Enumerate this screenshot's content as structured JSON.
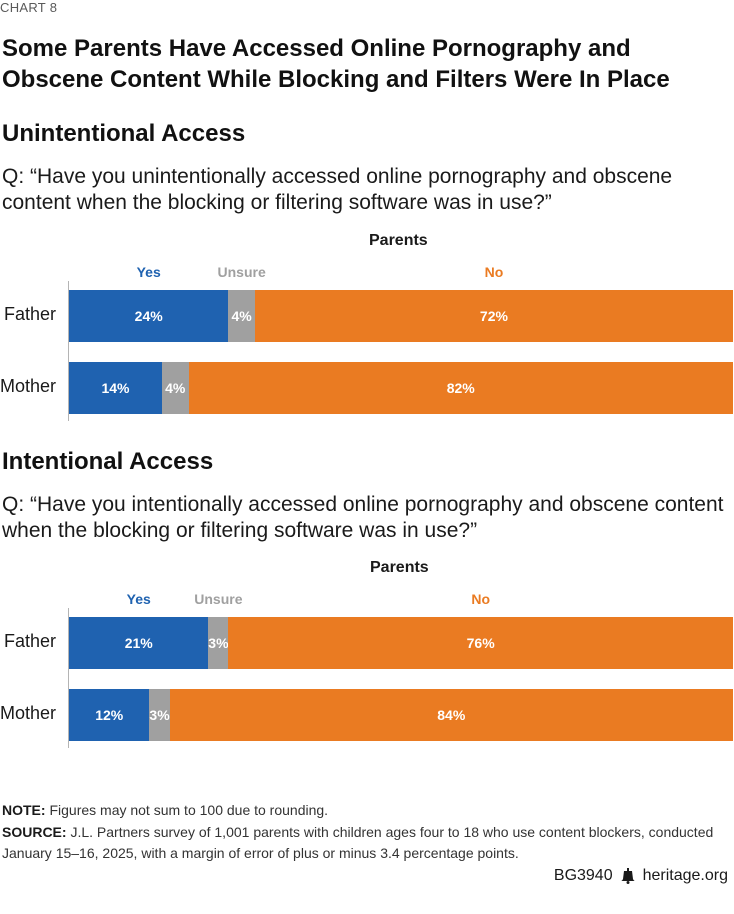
{
  "chart_number": "CHART 8",
  "title": "Some Parents Have Accessed Online Pornography and Obscene Content While Blocking and Filters Were In Place",
  "colors": {
    "yes": "#1f62b0",
    "unsure": "#a0a0a0",
    "no": "#ea7b22"
  },
  "chart_data": [
    {
      "type": "bar",
      "stacked": true,
      "orientation": "horizontal",
      "title": "Unintentional Access",
      "subtitle": "Q: “Have you unintentionally accessed online pornography and obscene content when the blocking or filtering software was in use?”",
      "group_label": "Parents",
      "categories": [
        "Father",
        "Mother"
      ],
      "series": [
        {
          "name": "Yes",
          "values": [
            24,
            14
          ]
        },
        {
          "name": "Unsure",
          "values": [
            4,
            4
          ]
        },
        {
          "name": "No",
          "values": [
            72,
            82
          ]
        }
      ],
      "value_suffix": "%"
    },
    {
      "type": "bar",
      "stacked": true,
      "orientation": "horizontal",
      "title": "Intentional Access",
      "subtitle": "Q: “Have you intentionally accessed online pornography and obscene content when the blocking or filtering software was in use?”",
      "group_label": "Parents",
      "categories": [
        "Father",
        "Mother"
      ],
      "series": [
        {
          "name": "Yes",
          "values": [
            21,
            12
          ]
        },
        {
          "name": "Unsure",
          "values": [
            3,
            3
          ]
        },
        {
          "name": "No",
          "values": [
            76,
            84
          ]
        }
      ],
      "value_suffix": "%"
    }
  ],
  "note": {
    "label": "NOTE:",
    "text": "Figures may not sum to 100 due to rounding."
  },
  "source": {
    "label": "SOURCE:",
    "text": "J.L. Partners survey of 1,001 parents with children ages four to 18 who use content blockers, conducted January 15–16, 2025, with a margin of error of plus or minus 3.4 percentage points."
  },
  "footer": {
    "id": "BG3940",
    "site": "heritage.org",
    "icon": "liberty-bell-icon"
  }
}
